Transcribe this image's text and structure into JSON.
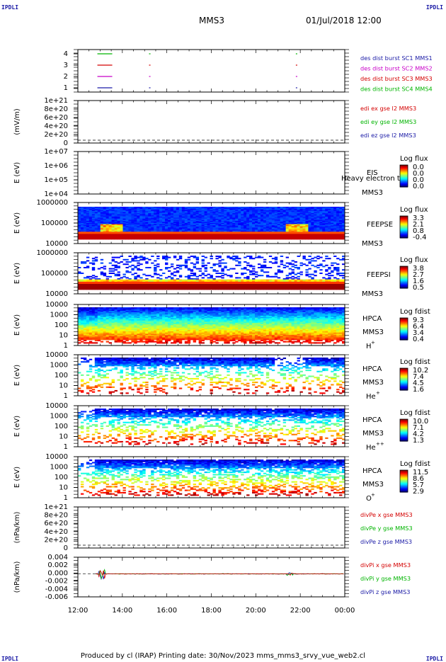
{
  "corners": {
    "tl": "IPDLI",
    "tr": "IPDLI",
    "bl": "IPDLI",
    "br": "IPDLI"
  },
  "header": {
    "spacecraft": "MMS3",
    "datetime": "01/Jul/2018 12:00"
  },
  "footer": {
    "text": "Produced by cl (IRAP)   Printing date: 30/Nov/2023   mms_mms3_srvy_vue_web2.cl"
  },
  "chart_data": {
    "type": "heatmap",
    "x_ticks": [
      "12:00",
      "14:00",
      "16:00",
      "18:00",
      "20:00",
      "22:00",
      "00:00"
    ],
    "x_range_hours": [
      12,
      24
    ],
    "panels": [
      {
        "id": "burst",
        "ylabel": "",
        "yticks": [
          "4",
          "3",
          "2",
          "1"
        ],
        "legend": [
          {
            "text": "des dist burst SC1 MMS1",
            "color": "#1a1aa6"
          },
          {
            "text": "des dist burst SC2 MMS2",
            "color": "#c800c8"
          },
          {
            "text": "des dist burst SC3 MMS3",
            "color": "#d40000"
          },
          {
            "text": "des dist burst SC4 MMS4",
            "color": "#00b400"
          }
        ],
        "segments": [
          {
            "sc": 4,
            "color": "#00b400",
            "marks": [
              13.1,
              15.2,
              21.8
            ]
          },
          {
            "sc": 3,
            "color": "#d40000",
            "marks": [
              13.1,
              15.2,
              21.8
            ]
          },
          {
            "sc": 2,
            "color": "#c800c8",
            "marks": [
              13.1,
              15.2,
              21.8
            ]
          },
          {
            "sc": 1,
            "color": "#1a1aa6",
            "marks": [
              13.1,
              15.2,
              21.8
            ]
          }
        ]
      },
      {
        "id": "edi",
        "ylabel": "(mV/m)",
        "yticks": [
          "1e+21",
          "8e+20",
          "6e+20",
          "4e+20",
          "2e+20",
          "0"
        ],
        "legend": [
          {
            "text": "edi ex gse l2 MMS3",
            "color": "#d40000"
          },
          {
            "text": "edi ey gse l2 MMS3",
            "color": "#00b400"
          },
          {
            "text": "edi ez gse l2 MMS3",
            "color": "#1a1aa6"
          }
        ]
      },
      {
        "id": "eis",
        "ylabel": "E (eV)",
        "yticks": [
          "1e+07",
          "1e+06",
          "1e+05",
          "1e+04"
        ],
        "labels": [
          "EIS",
          "MMS3"
        ],
        "overlap_text": "Heavy electron tc",
        "cbar": {
          "title": "Log flux",
          "ticks": [
            "0.0",
            "0.0",
            "0.0",
            "0.0"
          ]
        }
      },
      {
        "id": "feepse",
        "ylabel": "E (eV)",
        "yticks": [
          "1000000",
          "100000",
          "10000"
        ],
        "labels": [
          "FEEPSE",
          "MMS3"
        ],
        "cbar": {
          "title": "Log flux",
          "ticks": [
            "3.3",
            "2.1",
            "0.8",
            "-0.4"
          ]
        }
      },
      {
        "id": "feepsi",
        "ylabel": "E (eV)",
        "yticks": [
          "1000000",
          "100000",
          "10000"
        ],
        "labels": [
          "FEEPSI",
          "MMS3"
        ],
        "cbar": {
          "title": "Log flux",
          "ticks": [
            "3.8",
            "2.7",
            "1.6",
            "0.5"
          ]
        }
      },
      {
        "id": "hpca_h",
        "ylabel": "E (eV)",
        "yticks": [
          "10000",
          "1000",
          "100",
          "10",
          "1"
        ],
        "labels": [
          "HPCA",
          "MMS3",
          "H",
          "+"
        ],
        "cbar": {
          "title": "Log fdist",
          "ticks": [
            "9.3",
            "6.4",
            "3.4",
            "0.4"
          ]
        }
      },
      {
        "id": "hpca_he",
        "ylabel": "E (eV)",
        "yticks": [
          "10000",
          "1000",
          "100",
          "10",
          "1"
        ],
        "labels": [
          "HPCA",
          "MMS3",
          "He",
          "+"
        ],
        "cbar": {
          "title": "Log fdist",
          "ticks": [
            "10.2",
            "7.4",
            "4.5",
            "1.6"
          ]
        }
      },
      {
        "id": "hpca_hepp",
        "ylabel": "E (eV)",
        "yticks": [
          "10000",
          "1000",
          "100",
          "10",
          "1"
        ],
        "labels": [
          "HPCA",
          "MMS3",
          "He",
          "++"
        ],
        "cbar": {
          "title": "Log fdist",
          "ticks": [
            "10.0",
            "7.1",
            "4.2",
            "1.3"
          ]
        }
      },
      {
        "id": "hpca_o",
        "ylabel": "E (eV)",
        "yticks": [
          "10000",
          "1000",
          "100",
          "10",
          "1"
        ],
        "labels": [
          "HPCA",
          "MMS3",
          "O",
          "+"
        ],
        "cbar": {
          "title": "Log fdist",
          "ticks": [
            "11.5",
            "8.6",
            "5.7",
            "2.9"
          ]
        }
      },
      {
        "id": "divpe",
        "ylabel": "(nPa/km)",
        "yticks": [
          "1e+21",
          "8e+20",
          "6e+20",
          "4e+20",
          "2e+20",
          "0"
        ],
        "legend": [
          {
            "text": "divPe x gse MMS3",
            "color": "#d40000"
          },
          {
            "text": "divPe y gse MMS3",
            "color": "#00b400"
          },
          {
            "text": "divPe z gse MMS3",
            "color": "#1a1aa6"
          }
        ]
      },
      {
        "id": "divpi",
        "ylabel": "(nPa/km)",
        "yticks": [
          "0.004",
          "0.002",
          "0.000",
          "-0.002",
          "-0.004",
          "-0.006"
        ],
        "legend": [
          {
            "text": "divPi x gse MMS3",
            "color": "#d40000"
          },
          {
            "text": "divPi y gse MMS3",
            "color": "#00b400"
          },
          {
            "text": "divPi z gse MMS3",
            "color": "#1a1aa6"
          }
        ]
      }
    ]
  }
}
